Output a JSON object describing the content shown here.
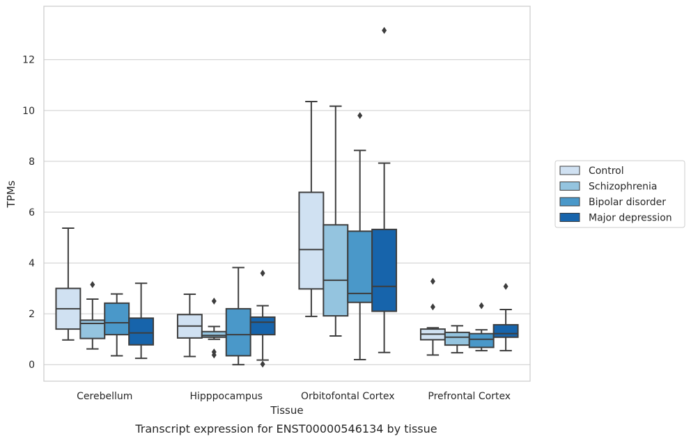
{
  "chart_data": {
    "type": "box",
    "title": "",
    "caption": "Transcript expression for ENST00000546134 by tissue",
    "xlabel": "Tissue",
    "ylabel": "TPMs",
    "ylim": [
      -0.65,
      14.1
    ],
    "yticks": [
      0,
      2,
      4,
      6,
      8,
      10,
      12
    ],
    "grid": "horizontal",
    "legend_position": "right",
    "categories": [
      "Cerebellum",
      "Hipppocampus",
      "Orbitofontal Cortex",
      "Prefrontal Cortex"
    ],
    "series": [
      {
        "name": "Control",
        "color": "#d0e1f2",
        "boxes": [
          {
            "whisker_low": 0.97,
            "q1": 1.4,
            "median": 2.2,
            "q3": 3.0,
            "whisker_high": 5.37,
            "outliers": []
          },
          {
            "whisker_low": 0.32,
            "q1": 1.05,
            "median": 1.52,
            "q3": 1.97,
            "whisker_high": 2.77,
            "outliers": []
          },
          {
            "whisker_low": 1.9,
            "q1": 2.98,
            "median": 4.53,
            "q3": 6.78,
            "whisker_high": 10.35,
            "outliers": []
          },
          {
            "whisker_low": 0.38,
            "q1": 0.98,
            "median": 1.2,
            "q3": 1.4,
            "whisker_high": 1.45,
            "outliers": [
              2.27,
              3.28
            ]
          }
        ]
      },
      {
        "name": "Schizophrenia",
        "color": "#94c4df",
        "boxes": [
          {
            "whisker_low": 0.62,
            "q1": 1.03,
            "median": 1.62,
            "q3": 1.75,
            "whisker_high": 2.58,
            "outliers": [
              3.15
            ]
          },
          {
            "whisker_low": 1.0,
            "q1": 1.08,
            "median": 1.15,
            "q3": 1.3,
            "whisker_high": 1.5,
            "outliers": [
              0.38,
              0.5,
              2.5
            ]
          },
          {
            "whisker_low": 1.13,
            "q1": 1.92,
            "median": 3.32,
            "q3": 5.5,
            "whisker_high": 10.17,
            "outliers": []
          },
          {
            "whisker_low": 0.47,
            "q1": 0.77,
            "median": 1.08,
            "q3": 1.27,
            "whisker_high": 1.53,
            "outliers": []
          }
        ]
      },
      {
        "name": "Bipolar disorder",
        "color": "#4a98c9",
        "boxes": [
          {
            "whisker_low": 0.35,
            "q1": 1.18,
            "median": 1.65,
            "q3": 2.42,
            "whisker_high": 2.78,
            "outliers": []
          },
          {
            "whisker_low": 0.0,
            "q1": 0.35,
            "median": 1.18,
            "q3": 2.2,
            "whisker_high": 3.82,
            "outliers": []
          },
          {
            "whisker_low": 0.2,
            "q1": 2.45,
            "median": 2.8,
            "q3": 5.25,
            "whisker_high": 8.43,
            "outliers": [
              9.8
            ]
          },
          {
            "whisker_low": 0.55,
            "q1": 0.68,
            "median": 1.0,
            "q3": 1.22,
            "whisker_high": 1.37,
            "outliers": [
              2.32
            ]
          }
        ]
      },
      {
        "name": "Major depression",
        "color": "#1764ab",
        "boxes": [
          {
            "whisker_low": 0.25,
            "q1": 0.78,
            "median": 1.25,
            "q3": 1.83,
            "whisker_high": 3.2,
            "outliers": []
          },
          {
            "whisker_low": 0.18,
            "q1": 1.18,
            "median": 1.67,
            "q3": 1.87,
            "whisker_high": 2.32,
            "outliers": [
              0.02,
              3.6
            ]
          },
          {
            "whisker_low": 0.48,
            "q1": 2.1,
            "median": 3.08,
            "q3": 5.32,
            "whisker_high": 7.93,
            "outliers": [
              13.15
            ]
          },
          {
            "whisker_low": 0.55,
            "q1": 1.08,
            "median": 1.22,
            "q3": 1.57,
            "whisker_high": 2.17,
            "outliers": [
              3.08
            ]
          }
        ]
      }
    ]
  }
}
